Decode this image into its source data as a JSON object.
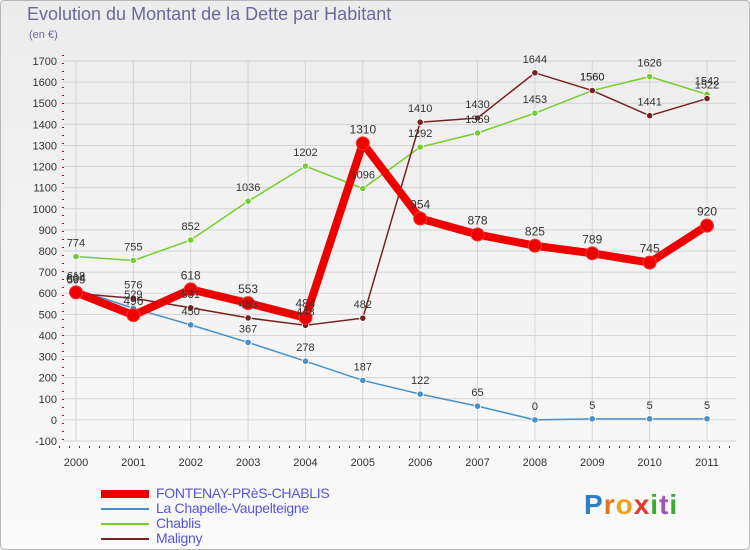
{
  "title": "Evolution du Montant de la Dette par Habitant",
  "subtitle": "(en €)",
  "brand": {
    "letters": [
      "P",
      "r",
      "o",
      "x",
      "i",
      "t",
      "i"
    ],
    "colors": [
      "#2f7ec4",
      "#e0731e",
      "#f0a020",
      "#e23a2f",
      "#3aaa35",
      "#9b59b6",
      "#3aaa35"
    ]
  },
  "chart_data": {
    "type": "line",
    "title": "Evolution du Montant de la Dette par Habitant",
    "ylabel": "(en €)",
    "xlabel": "",
    "x": [
      "2000",
      "2001",
      "2002",
      "2003",
      "2004",
      "2005",
      "2006",
      "2007",
      "2008",
      "2009",
      "2010",
      "2011"
    ],
    "ylim": [
      -100,
      1700
    ],
    "yticks": [
      "-100",
      "0",
      "100",
      "200",
      "300",
      "400",
      "500",
      "600",
      "700",
      "800",
      "900",
      "1000",
      "1100",
      "1200",
      "1300",
      "1400",
      "1500",
      "1600",
      "1700"
    ],
    "grid": true,
    "legend_position": "bottom-left",
    "series": [
      {
        "name": "FONTENAY-PRèS-CHABLIS",
        "color": "#ee0000",
        "values": [
          604,
          496,
          618,
          553,
          484,
          1310,
          954,
          878,
          825,
          789,
          745,
          920
        ],
        "labels": [
          "604",
          "496",
          "618",
          "553",
          "484",
          "1310",
          "954",
          "878",
          "825",
          "789",
          "745",
          "920"
        ]
      },
      {
        "name": "La Chapelle-Vaupelteigne",
        "color": "#4a90c8",
        "values": [
          618,
          529,
          450,
          367,
          278,
          187,
          122,
          65,
          0,
          5,
          5,
          5
        ],
        "labels": [
          "618",
          "529",
          "450",
          "367",
          "278",
          "187",
          "122",
          "65",
          "0",
          "5",
          "5",
          "5"
        ]
      },
      {
        "name": "Chablis",
        "color": "#77cc33",
        "values": [
          774,
          755,
          852,
          1036,
          1202,
          1096,
          1292,
          1359,
          1453,
          1560,
          1626,
          1542
        ],
        "labels": [
          "774",
          "755",
          "852",
          "1036",
          "1202",
          "1096",
          "1292",
          "1359",
          "1453",
          "1560",
          "1626",
          "1542"
        ]
      },
      {
        "name": "Maligny",
        "color": "#772222",
        "values": [
          599,
          576,
          531,
          483,
          448,
          482,
          1410,
          1430,
          1644,
          1560,
          1441,
          1522
        ],
        "labels": [
          "599",
          "576",
          "531",
          "483",
          "448",
          "482",
          "1410",
          "1430",
          "1644",
          "1560",
          "1441",
          "1522"
        ]
      }
    ]
  }
}
